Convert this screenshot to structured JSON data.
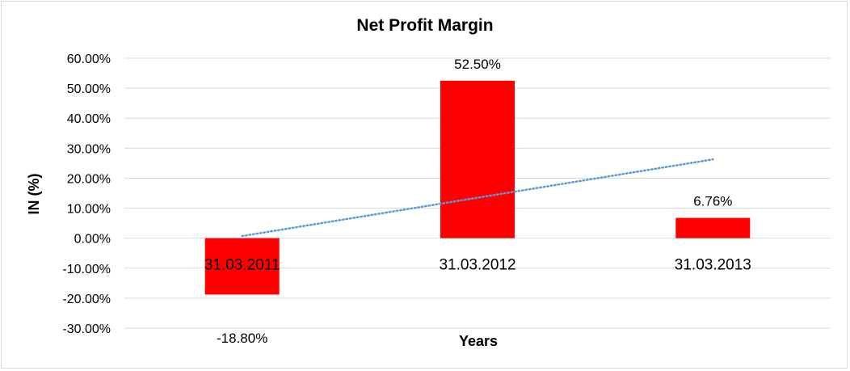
{
  "chart_data": {
    "type": "bar",
    "title": "Net Profit Margin",
    "xlabel": "Years",
    "ylabel": "IN (%)",
    "categories": [
      "31.03.2011",
      "31.03.2012",
      "31.03.2013"
    ],
    "values": [
      -18.8,
      52.5,
      6.76
    ],
    "data_labels": [
      "-18.80%",
      "52.50%",
      "6.76%"
    ],
    "ylim": [
      -30,
      60
    ],
    "yticks": [
      60,
      50,
      40,
      30,
      20,
      10,
      0,
      -10,
      -20,
      -30
    ],
    "ytick_labels": [
      "60.00%",
      "50.00%",
      "40.00%",
      "30.00%",
      "20.00%",
      "10.00%",
      "0.00%",
      "-10.00%",
      "-20.00%",
      "-30.00%"
    ],
    "grid": true,
    "legend": "none",
    "trendline": "linear",
    "bar_color": "#ff0000",
    "trendline_color": "#5b9bd5",
    "grid_color": "#d9d9d9"
  }
}
